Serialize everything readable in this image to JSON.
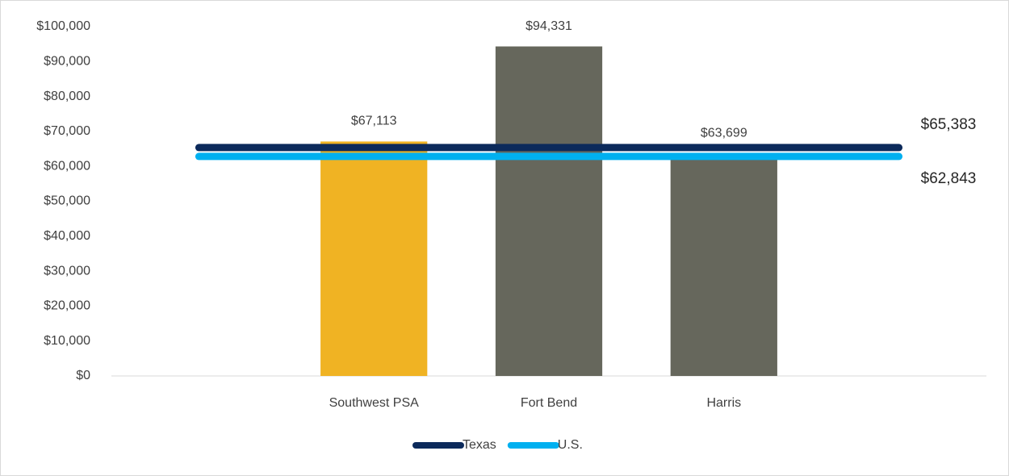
{
  "chart_data": {
    "type": "bar",
    "categories": [
      null,
      "Southwest PSA",
      "Fort Bend",
      "Harris",
      null
    ],
    "values": [
      null,
      67113,
      94331,
      63699,
      null
    ],
    "value_labels": [
      null,
      "$67,113",
      "$94,331",
      "$63,699",
      null
    ],
    "colors": [
      null,
      "#f0b323",
      "#66675c",
      "#66675c",
      null
    ],
    "reference_lines": [
      {
        "name": "Texas",
        "color": "#0c2a5b",
        "value": 65383,
        "value_label": "$65,383"
      },
      {
        "name": "U.S.",
        "color": "#00b0f0",
        "value": 62843,
        "value_label": "$62,843"
      }
    ],
    "ylim": [
      0,
      100000
    ],
    "yticks": [
      {
        "value": 0,
        "label": "$0"
      },
      {
        "value": 10000,
        "label": "$10,000"
      },
      {
        "value": 20000,
        "label": "$20,000"
      },
      {
        "value": 30000,
        "label": "$30,000"
      },
      {
        "value": 40000,
        "label": "$40,000"
      },
      {
        "value": 50000,
        "label": "$50,000"
      },
      {
        "value": 60000,
        "label": "$60,000"
      },
      {
        "value": 70000,
        "label": "$70,000"
      },
      {
        "value": 80000,
        "label": "$80,000"
      },
      {
        "value": 90000,
        "label": "$90,000"
      },
      {
        "value": 100000,
        "label": "$100,000"
      }
    ],
    "legend": "bottom"
  }
}
